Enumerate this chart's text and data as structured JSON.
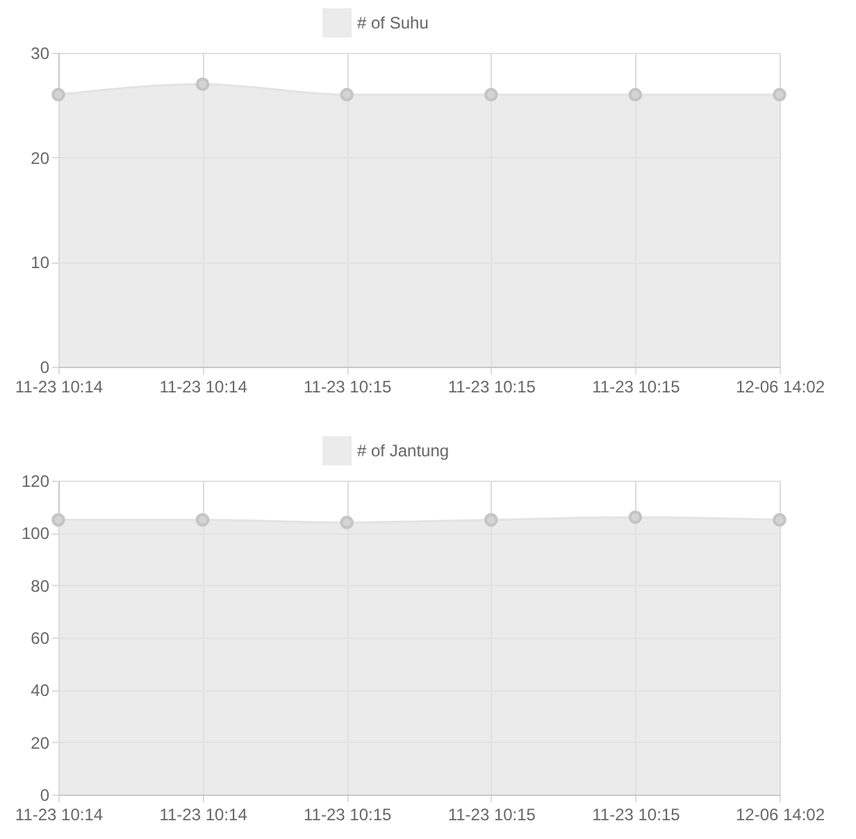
{
  "chart_data": [
    {
      "type": "area",
      "categories": [
        "11-23 10:14",
        "11-23 10:14",
        "11-23 10:15",
        "11-23 10:15",
        "11-23 10:15",
        "12-06 14:02"
      ],
      "series": [
        {
          "name": "# of Suhu",
          "color": "#e3e3e3",
          "values": [
            26,
            27,
            26,
            26,
            26,
            26
          ]
        }
      ],
      "ylim": [
        0,
        30
      ],
      "yticks": [
        0,
        10,
        20,
        30
      ],
      "grid": true,
      "legend": "top",
      "marker": "circle"
    },
    {
      "type": "area",
      "categories": [
        "11-23 10:14",
        "11-23 10:14",
        "11-23 10:15",
        "11-23 10:15",
        "11-23 10:15",
        "12-06 14:02"
      ],
      "series": [
        {
          "name": "# of Jantung",
          "color": "#e3e3e3",
          "values": [
            105,
            105,
            104,
            105,
            106,
            105
          ]
        }
      ],
      "ylim": [
        0,
        120
      ],
      "yticks": [
        0,
        20,
        40,
        60,
        80,
        100,
        120
      ],
      "grid": true,
      "legend": "top",
      "marker": "circle"
    }
  ]
}
